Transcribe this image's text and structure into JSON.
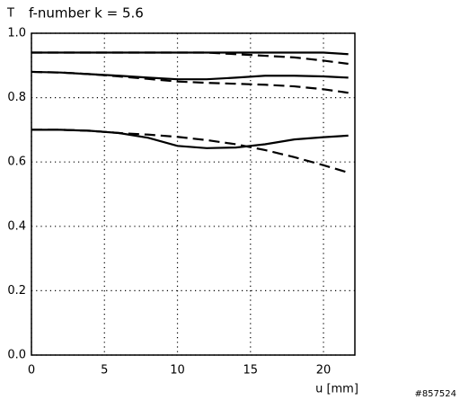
{
  "chart_data": {
    "type": "line",
    "y_axis_label": "T",
    "title": "f-number k = 5.6",
    "x_axis_label": "u [mm]",
    "footer": "#857524",
    "x": [
      0,
      2,
      4,
      6,
      8,
      10,
      12,
      14,
      16,
      18,
      20,
      21.7
    ],
    "series": [
      {
        "color": "#000000",
        "style": "solid",
        "values": [
          0.94,
          0.94,
          0.94,
          0.94,
          0.94,
          0.94,
          0.94,
          0.94,
          0.94,
          0.94,
          0.94,
          0.935
        ]
      },
      {
        "color": "#000000",
        "style": "dashed",
        "values": [
          0.94,
          0.94,
          0.94,
          0.94,
          0.94,
          0.94,
          0.94,
          0.935,
          0.93,
          0.925,
          0.915,
          0.905
        ]
      },
      {
        "color": "#000000",
        "style": "solid",
        "values": [
          0.88,
          0.878,
          0.873,
          0.868,
          0.862,
          0.857,
          0.857,
          0.862,
          0.868,
          0.868,
          0.866,
          0.862
        ]
      },
      {
        "color": "#000000",
        "style": "dashed",
        "values": [
          0.88,
          0.878,
          0.873,
          0.866,
          0.858,
          0.85,
          0.846,
          0.843,
          0.84,
          0.835,
          0.826,
          0.815
        ]
      },
      {
        "color": "#000000",
        "style": "solid",
        "values": [
          0.7,
          0.7,
          0.697,
          0.69,
          0.675,
          0.65,
          0.643,
          0.645,
          0.655,
          0.67,
          0.677,
          0.682
        ]
      },
      {
        "color": "#000000",
        "style": "dashed",
        "values": [
          0.7,
          0.7,
          0.697,
          0.69,
          0.685,
          0.678,
          0.668,
          0.655,
          0.637,
          0.615,
          0.59,
          0.567
        ]
      }
    ],
    "xlim": [
      0,
      22.15
    ],
    "ylim": [
      0,
      1
    ],
    "xticks": [
      0,
      5,
      10,
      15,
      20
    ],
    "yticks": [
      {
        "value": 0,
        "label": "0.0"
      },
      0.2,
      0.4,
      0.6,
      0.8,
      {
        "value": 1,
        "label": "1.0"
      }
    ],
    "grid": true
  }
}
